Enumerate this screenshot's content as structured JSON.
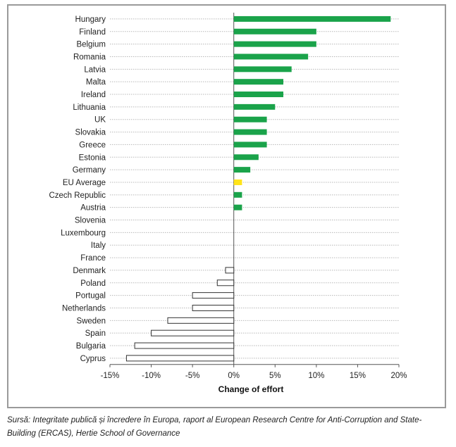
{
  "chart_data": {
    "type": "bar",
    "orientation": "horizontal",
    "categories": [
      "Hungary",
      "Finland",
      "Belgium",
      "Romania",
      "Latvia",
      "Malta",
      "Ireland",
      "Lithuania",
      "UK",
      "Slovakia",
      "Greece",
      "Estonia",
      "Germany",
      "EU Average",
      "Czech Republic",
      "Austria",
      "Slovenia",
      "Luxembourg",
      "Italy",
      "France",
      "Denmark",
      "Poland",
      "Portugal",
      "Netherlands",
      "Sweden",
      "Spain",
      "Bulgaria",
      "Cyprus"
    ],
    "values": [
      19,
      10,
      10,
      9,
      7,
      6,
      6,
      5,
      4,
      4,
      4,
      3,
      2,
      1,
      1,
      1,
      0,
      0,
      0,
      0,
      -1,
      -2,
      -5,
      -5,
      -8,
      -10,
      -12,
      -13
    ],
    "xlabel": "Change of effort",
    "ylabel": "",
    "xlim": [
      -15,
      20
    ],
    "ticks": [
      -15,
      -10,
      -5,
      0,
      5,
      10,
      15,
      20
    ],
    "tick_labels": [
      "-15%",
      "-10%",
      "-5%",
      "0%",
      "5%",
      "10%",
      "15%",
      "20%"
    ],
    "grid": true,
    "colors": {
      "positive": "#1aa34a",
      "highlight": "#ffe419",
      "negative_fill": "#ffffff",
      "negative_stroke": "#333333",
      "grid": "#b8b8b8",
      "axis": "#555555"
    },
    "highlight_category": "EU Average"
  },
  "source_text": "Sursă: Integritate publică și încredere în Europa, raport al European Research Centre for Anti-Corruption and State-Building (ERCAS), Hertie School of Governance"
}
